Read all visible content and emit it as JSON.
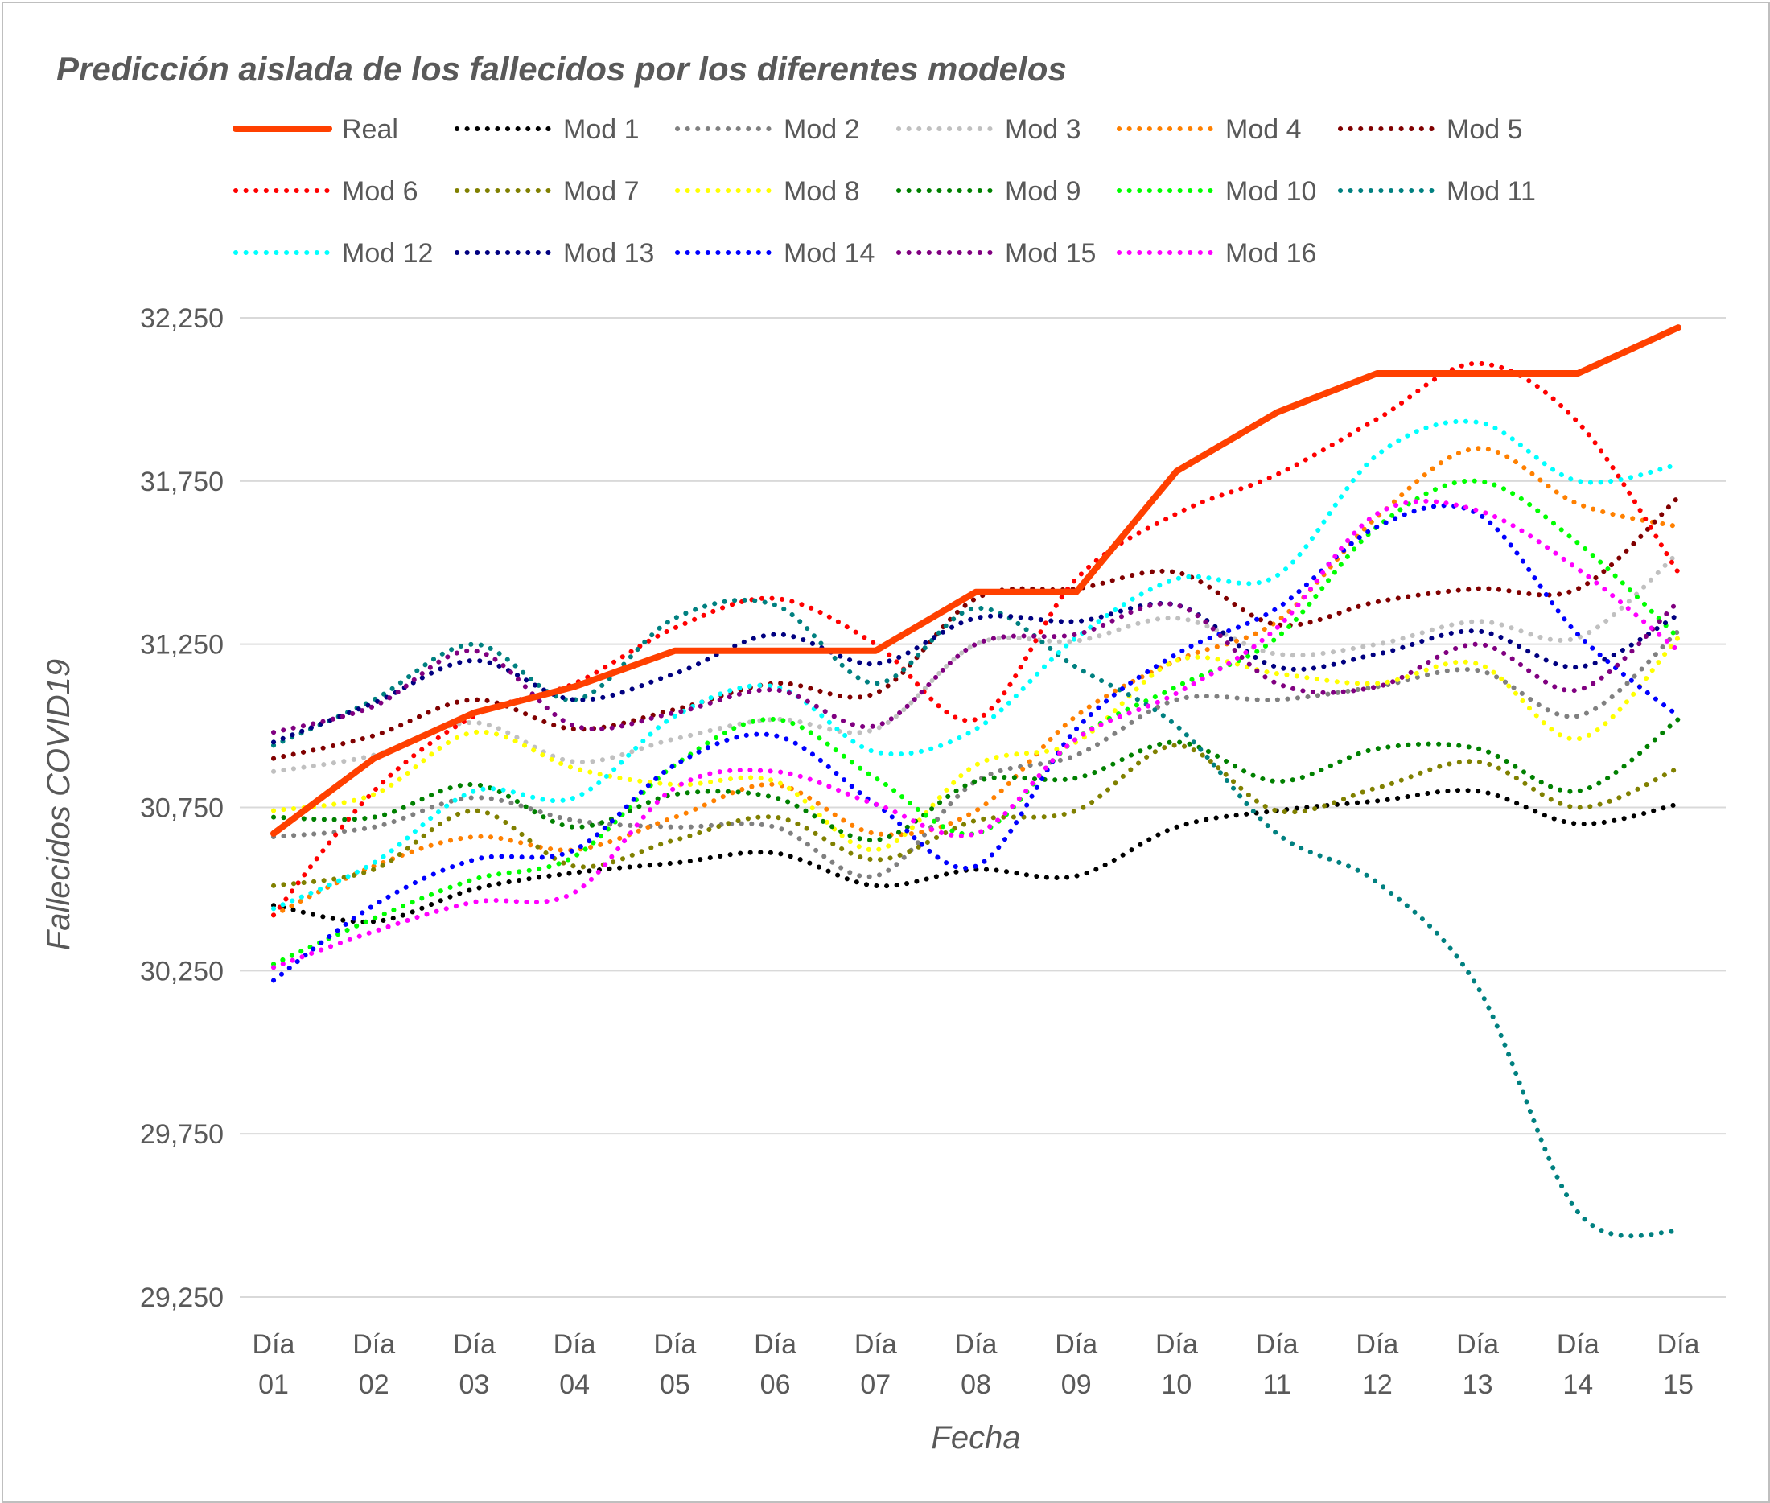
{
  "chart_data": {
    "type": "line",
    "title": "Predicción aislada de los fallecidos por los diferentes modelos",
    "xlabel": "Fecha",
    "ylabel": "Fallecidos COVID19",
    "ylim": [
      29250,
      32250
    ],
    "yticks": [
      29250,
      29750,
      30250,
      30750,
      31250,
      31750,
      32250
    ],
    "ytick_labels": [
      "29,250",
      "29,750",
      "30,250",
      "30,750",
      "31,250",
      "31,750",
      "32,250"
    ],
    "grid": true,
    "legend_position": "top",
    "categories": [
      [
        "Día",
        "01"
      ],
      [
        "Día",
        "02"
      ],
      [
        "Día",
        "03"
      ],
      [
        "Día",
        "04"
      ],
      [
        "Día",
        "05"
      ],
      [
        "Día",
        "06"
      ],
      [
        "Día",
        "07"
      ],
      [
        "Día",
        "08"
      ],
      [
        "Día",
        "09"
      ],
      [
        "Día",
        "10"
      ],
      [
        "Día",
        "11"
      ],
      [
        "Día",
        "12"
      ],
      [
        "Día",
        "13"
      ],
      [
        "Día",
        "14"
      ],
      [
        "Día",
        "15"
      ]
    ],
    "series": [
      {
        "name": "Real",
        "color": "#ff4000",
        "style": "solid",
        "values": [
          30670,
          30900,
          31040,
          31120,
          31230,
          31230,
          31230,
          31410,
          31410,
          31780,
          31960,
          32080,
          32080,
          32080,
          32220
        ]
      },
      {
        "name": "Mod 1",
        "color": "#000000",
        "style": "dotted",
        "values": [
          30450,
          30400,
          30500,
          30550,
          30580,
          30610,
          30510,
          30560,
          30540,
          30690,
          30740,
          30770,
          30800,
          30700,
          30760
        ]
      },
      {
        "name": "Mod 2",
        "color": "#808080",
        "style": "dotted",
        "values": [
          30660,
          30690,
          30780,
          30710,
          30690,
          30690,
          30540,
          30830,
          30910,
          31080,
          31080,
          31120,
          31170,
          31030,
          31290
        ]
      },
      {
        "name": "Mod 3",
        "color": "#c0c0c0",
        "style": "dotted",
        "values": [
          30860,
          30910,
          31010,
          30890,
          30960,
          31020,
          30990,
          31250,
          31260,
          31330,
          31220,
          31250,
          31320,
          31270,
          31530
        ]
      },
      {
        "name": "Mod 4",
        "color": "#ff8000",
        "style": "dotted",
        "values": [
          30420,
          30570,
          30660,
          30620,
          30720,
          30820,
          30670,
          30740,
          31030,
          31200,
          31320,
          31640,
          31850,
          31680,
          31610
        ]
      },
      {
        "name": "Mod 5",
        "color": "#800000",
        "style": "dotted",
        "values": [
          30900,
          30970,
          31080,
          30990,
          31050,
          31130,
          31100,
          31390,
          31420,
          31470,
          31310,
          31380,
          31420,
          31420,
          31700
        ]
      },
      {
        "name": "Mod 6",
        "color": "#ff0000",
        "style": "dotted",
        "values": [
          30420,
          30800,
          31030,
          31130,
          31300,
          31390,
          31250,
          31020,
          31450,
          31650,
          31770,
          31940,
          32110,
          31930,
          31470
        ]
      },
      {
        "name": "Mod 7",
        "color": "#808000",
        "style": "dotted",
        "values": [
          30510,
          30560,
          30740,
          30570,
          30650,
          30720,
          30590,
          30710,
          30740,
          30940,
          30740,
          30810,
          30890,
          30750,
          30870
        ]
      },
      {
        "name": "Mod 8",
        "color": "#ffff00",
        "style": "dotted",
        "values": [
          30740,
          30790,
          30980,
          30870,
          30820,
          30830,
          30620,
          30880,
          30950,
          31200,
          31160,
          31130,
          31190,
          30960,
          31270
        ]
      },
      {
        "name": "Mod 9",
        "color": "#008000",
        "style": "dotted",
        "values": [
          30720,
          30720,
          30820,
          30690,
          30790,
          30780,
          30650,
          30830,
          30840,
          30950,
          30830,
          30930,
          30930,
          30800,
          31020
        ]
      },
      {
        "name": "Mod 10",
        "color": "#00ff00",
        "style": "dotted",
        "values": [
          30270,
          30410,
          30530,
          30600,
          30880,
          31020,
          30840,
          30670,
          30960,
          31120,
          31270,
          31610,
          31750,
          31560,
          31270
        ]
      },
      {
        "name": "Mod 11",
        "color": "#008080",
        "style": "dotted",
        "values": [
          30940,
          31080,
          31250,
          31080,
          31330,
          31370,
          31130,
          31360,
          31180,
          31000,
          30670,
          30520,
          30200,
          29510,
          29450
        ]
      },
      {
        "name": "Mod 12",
        "color": "#00ffff",
        "style": "dotted",
        "values": [
          30440,
          30580,
          30800,
          30780,
          31030,
          31120,
          30920,
          30990,
          31270,
          31450,
          31460,
          31830,
          31930,
          31750,
          31800
        ]
      },
      {
        "name": "Mod 13",
        "color": "#000080",
        "style": "dotted",
        "values": [
          30950,
          31070,
          31200,
          31080,
          31160,
          31280,
          31190,
          31330,
          31320,
          31370,
          31180,
          31220,
          31290,
          31180,
          31340
        ]
      },
      {
        "name": "Mod 14",
        "color": "#0000ff",
        "style": "dotted",
        "values": [
          30220,
          30450,
          30590,
          30620,
          30880,
          30970,
          30760,
          30570,
          30990,
          31220,
          31360,
          31610,
          31650,
          31280,
          31030
        ]
      },
      {
        "name": "Mod 15",
        "color": "#800080",
        "style": "dotted",
        "values": [
          30980,
          31060,
          31230,
          31000,
          31040,
          31110,
          31000,
          31250,
          31280,
          31370,
          31130,
          31120,
          31250,
          31110,
          31380
        ]
      },
      {
        "name": "Mod 16",
        "color": "#ff00ff",
        "style": "dotted",
        "values": [
          30260,
          30370,
          30460,
          30490,
          30810,
          30860,
          30760,
          30670,
          30960,
          31100,
          31300,
          31650,
          31660,
          31480,
          31230
        ]
      }
    ]
  }
}
